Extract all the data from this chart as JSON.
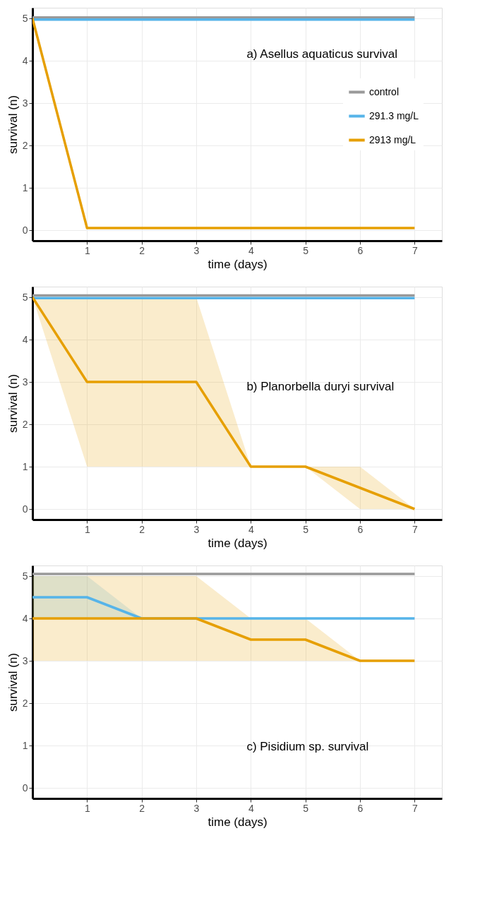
{
  "chart_data": [
    {
      "type": "line",
      "x": [
        0,
        1,
        2,
        3,
        4,
        5,
        6,
        7
      ],
      "xlabel": "time (days)",
      "ylabel": "survival (n)",
      "xlim": [
        0,
        7.5
      ],
      "ylim": [
        -0.25,
        5.25
      ],
      "xticks": [
        1,
        2,
        3,
        4,
        5,
        6,
        7
      ],
      "yticks": [
        0,
        1,
        2,
        3,
        4,
        5
      ],
      "grid": true,
      "legend": "right",
      "annotations": [
        "a) Asellus aquaticus survival"
      ],
      "series": [
        {
          "name": "control",
          "color": "#999999",
          "values": [
            5.02,
            5.02,
            5.02,
            5.02,
            5.02,
            5.02,
            5.02,
            5.02
          ]
        },
        {
          "name": "291.3 mg/L",
          "color": "#56b4e9",
          "values": [
            4.97,
            4.97,
            4.97,
            4.97,
            4.97,
            4.97,
            4.97,
            4.97
          ]
        },
        {
          "name": "2913 mg/L",
          "color": "#e69f00",
          "values": [
            5,
            0.05,
            0.05,
            0.05,
            0.05,
            0.05,
            0.05,
            0.05
          ]
        }
      ]
    },
    {
      "type": "line",
      "x": [
        0,
        1,
        2,
        3,
        4,
        5,
        6,
        7
      ],
      "xlabel": "time (days)",
      "ylabel": "survival (n)",
      "xlim": [
        0,
        7.5
      ],
      "ylim": [
        -0.25,
        5.25
      ],
      "xticks": [
        1,
        2,
        3,
        4,
        5,
        6,
        7
      ],
      "yticks": [
        0,
        1,
        2,
        3,
        4,
        5
      ],
      "grid": true,
      "annotations": [
        "b) Planorbella duryi survival"
      ],
      "series": [
        {
          "color": "#999999",
          "values": [
            5.04,
            5.04,
            5.04,
            5.04,
            5.04,
            5.04,
            5.04,
            5.04
          ]
        },
        {
          "color": "#56b4e9",
          "values": [
            4.98,
            4.98,
            4.98,
            4.98,
            4.98,
            4.98,
            4.98,
            4.98
          ]
        },
        {
          "color": "#e69f00",
          "values": [
            5,
            3,
            3,
            3,
            1,
            1,
            0.5,
            0
          ],
          "lower": [
            5,
            1,
            1,
            1,
            1,
            1,
            0,
            0
          ],
          "upper": [
            5,
            5,
            5,
            5,
            1,
            1,
            1,
            0
          ]
        }
      ]
    },
    {
      "type": "line",
      "x": [
        0,
        1,
        2,
        3,
        4,
        5,
        6,
        7
      ],
      "xlabel": "time (days)",
      "ylabel": "survival (n)",
      "xlim": [
        0,
        7.5
      ],
      "ylim": [
        -0.25,
        5.25
      ],
      "xticks": [
        1,
        2,
        3,
        4,
        5,
        6,
        7
      ],
      "yticks": [
        0,
        1,
        2,
        3,
        4,
        5
      ],
      "grid": true,
      "annotations": [
        "c) Pisidium sp. survival"
      ],
      "series": [
        {
          "color": "#999999",
          "values": [
            5.05,
            5.05,
            5.05,
            5.05,
            5.05,
            5.05,
            5.05,
            5.05
          ]
        },
        {
          "color": "#56b4e9",
          "values": [
            4.5,
            4.5,
            4,
            4,
            4,
            4,
            4,
            4
          ],
          "lower": [
            4,
            4,
            4,
            4,
            4,
            4,
            4,
            4
          ],
          "upper": [
            5,
            5,
            4,
            4,
            4,
            4,
            4,
            4
          ]
        },
        {
          "color": "#e69f00",
          "values": [
            4,
            4,
            4,
            4,
            3.5,
            3.5,
            3,
            3
          ],
          "lower": [
            3,
            3,
            3,
            3,
            3,
            3,
            3,
            3
          ],
          "upper": [
            5,
            5,
            5,
            5,
            4,
            4,
            3,
            3
          ]
        }
      ]
    }
  ]
}
